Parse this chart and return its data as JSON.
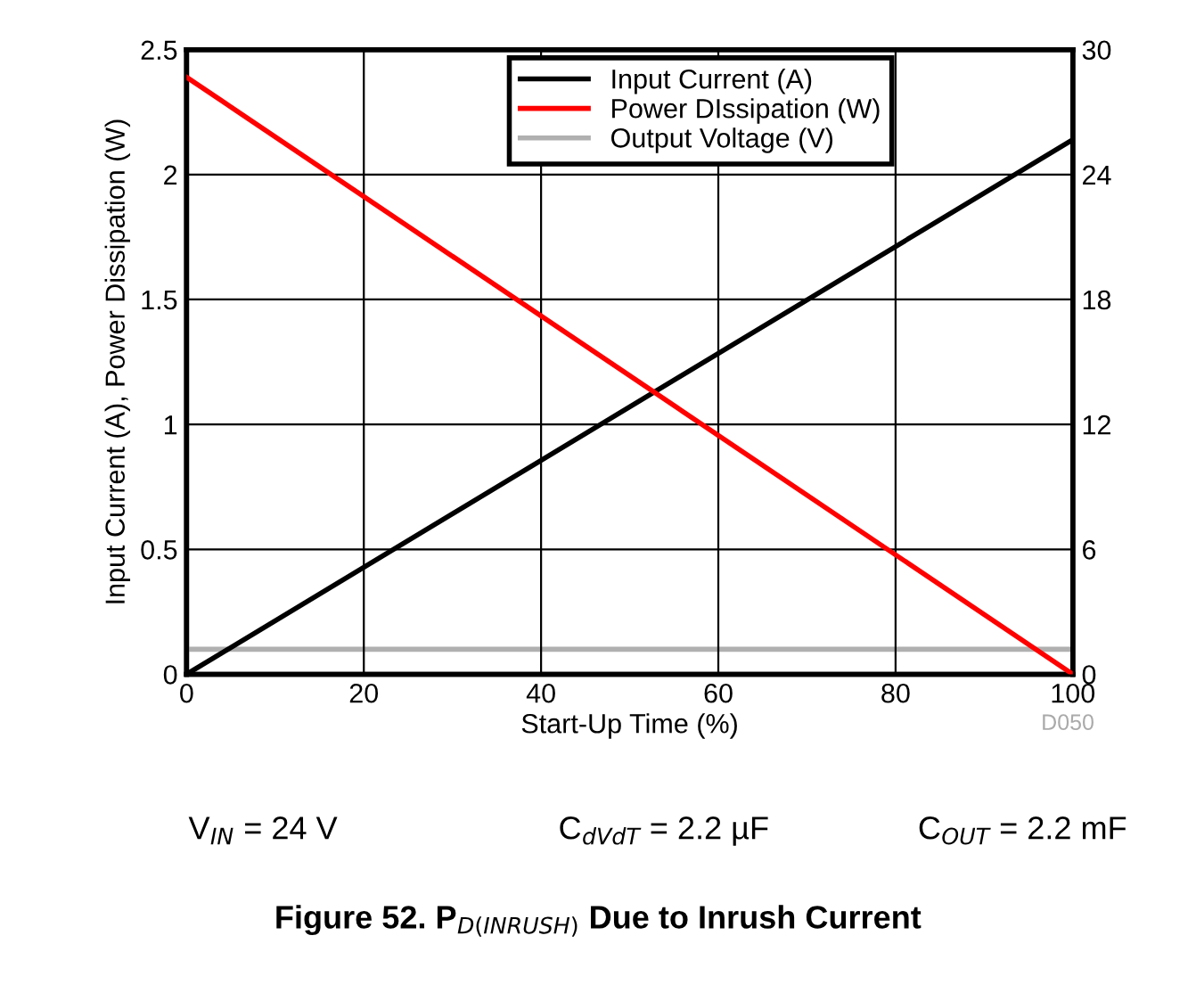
{
  "chart_data": {
    "type": "line",
    "xlabel": "Start-Up Time (%)",
    "ylabel": "Input Current (A), Power Dissipation (W)",
    "x": [
      0,
      100
    ],
    "series": [
      {
        "name": "Input Current (A)",
        "color": "#000000",
        "values": [
          0,
          2.14
        ]
      },
      {
        "name": "Power DIssipation (W)",
        "color": "#ff0000",
        "values": [
          2.39,
          0
        ]
      },
      {
        "name": "Output Voltage (V)",
        "color": "#b0b0b0",
        "values": [
          1.2,
          1.2
        ],
        "axis": "y2"
      }
    ],
    "xlim": [
      0,
      100
    ],
    "xticks": [
      0,
      20,
      40,
      60,
      80,
      100
    ],
    "ylim": [
      0,
      2.5
    ],
    "yticks": [
      0,
      0.5,
      1,
      1.5,
      2,
      2.5
    ],
    "y2lim": [
      0,
      30
    ],
    "y2ticks": [
      0,
      6,
      12,
      18,
      24,
      30
    ],
    "grid": true,
    "legend": "top right",
    "marker": "none",
    "line_style": "solid",
    "title": "Figure 52. P$_{D(INRUSH)}$ Due to Inrush Current",
    "annotations": [
      "D050",
      "V$_{IN}$ = 24 V",
      "C$_{dVdT}$ = 2.2 µF",
      "C$_{OUT}$ = 2.2 mF"
    ]
  }
}
